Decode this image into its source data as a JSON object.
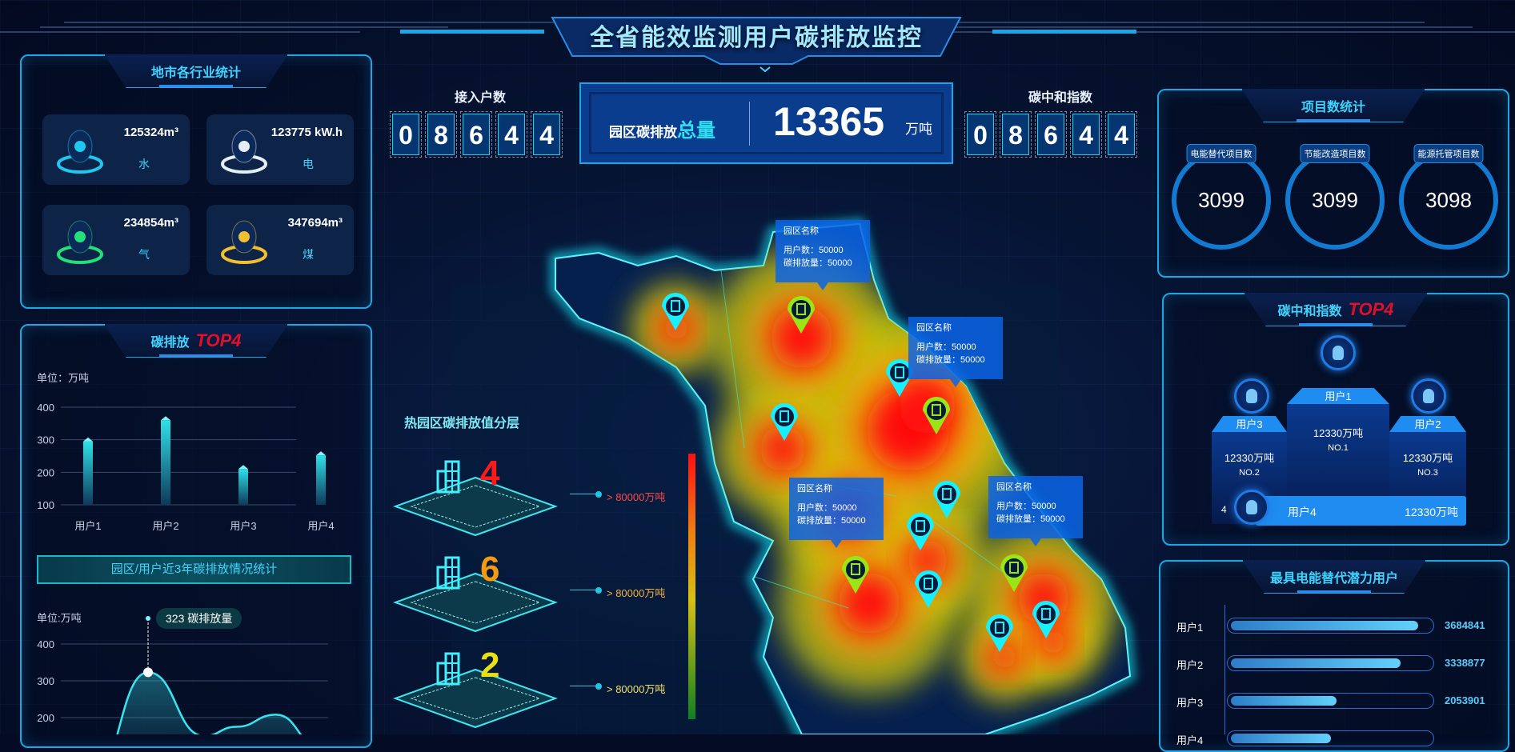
{
  "title": "全省能效监测用户碳排放监控",
  "colors": {
    "accent": "#1aa7e8",
    "title_cyan": "#3fd4ff",
    "top4_red": "#e0102a",
    "pin_cyan": "#19f0ff",
    "pin_green": "#9ae614"
  },
  "industry": {
    "title": "地市各行业统计",
    "cards": [
      {
        "value": "125324m³",
        "label": "水",
        "icon": "water-drop-icon",
        "color": "#1ec8f0"
      },
      {
        "value": "123775 kW.h",
        "label": "电",
        "icon": "lightning-icon",
        "color": "#e6eef5"
      },
      {
        "value": "234854m³",
        "label": "气",
        "icon": "gas-icon",
        "color": "#22e07a"
      },
      {
        "value": "347694m³",
        "label": "煤",
        "icon": "flame-icon",
        "color": "#f0c030"
      }
    ]
  },
  "top4": {
    "title": "碳排放",
    "badge": "TOP4",
    "unit": "单位：万吨",
    "chart_data": {
      "type": "bar",
      "categories": [
        "用户1",
        "用户2",
        "用户3",
        "用户4"
      ],
      "values": [
        295,
        360,
        210,
        252
      ],
      "yticks": [
        "100",
        "200",
        "300",
        "400"
      ],
      "ylim": [
        100,
        400
      ]
    }
  },
  "trend": {
    "button": "园区/用户近3年碳排放情况统计",
    "unit": "单位:万吨",
    "tooltip_value": "323",
    "tooltip_label": "碳排放量",
    "chart_data": {
      "type": "area",
      "values": [
        40,
        323,
        150,
        175,
        208,
        120
      ],
      "highlight_index": 1,
      "yticks": [
        "200",
        "300",
        "400"
      ],
      "ylim": [
        100,
        400
      ]
    }
  },
  "access": {
    "label": "接入户数",
    "digits": [
      "0",
      "8",
      "6",
      "4",
      "4"
    ]
  },
  "total": {
    "label": "园区碳排放",
    "label_em": "总量",
    "value": "13365",
    "unit": "万吨"
  },
  "neutral": {
    "label": "碳中和指数",
    "digits": [
      "0",
      "8",
      "6",
      "4",
      "4"
    ]
  },
  "legend": {
    "title": "热园区碳排放值分层",
    "layers": [
      {
        "count": "4",
        "color": "#ff1a1a",
        "label": "> 80000万吨",
        "label_color": "#ff4a4a"
      },
      {
        "count": "6",
        "color": "#f39a10",
        "label": "> 80000万吨",
        "label_color": "#f5b040"
      },
      {
        "count": "2",
        "color": "#e8e010",
        "label": "> 80000万吨",
        "label_color": "#f0e070"
      }
    ]
  },
  "tooltips": [
    {
      "name": "园区名称",
      "users": "用户数：50000",
      "emission": "碳排放量：50000"
    },
    {
      "name": "园区名称",
      "users": "用户数：50000",
      "emission": "碳排放量：50000"
    },
    {
      "name": "园区名称",
      "users": "用户数：50000",
      "emission": "碳排放量：50000"
    },
    {
      "name": "园区名称",
      "users": "用户数：50000",
      "emission": "碳排放量：50000"
    }
  ],
  "projects": {
    "title": "项目数统计",
    "items": [
      {
        "label": "电能替代项目数",
        "value": "3099"
      },
      {
        "label": "节能改造项目数",
        "value": "3099"
      },
      {
        "label": "能源托管项目数",
        "value": "3098"
      }
    ]
  },
  "ranking": {
    "title": "碳中和指数",
    "badge": "TOP4",
    "first": {
      "name": "用户1",
      "value": "12330万吨",
      "rank": "NO.1"
    },
    "left": {
      "name": "用户3",
      "value": "12330万吨",
      "rank": "NO.2"
    },
    "right": {
      "name": "用户2",
      "value": "12330万吨",
      "rank": "NO.3"
    },
    "fourth": {
      "rank": "4",
      "name": "用户4",
      "value": "12330万吨"
    }
  },
  "potential": {
    "title": "最具电能替代潜力用户",
    "rows": [
      {
        "name": "用户1",
        "value": "3684841",
        "fraction": 0.94
      },
      {
        "name": "用户2",
        "value": "3338877",
        "fraction": 0.85
      },
      {
        "name": "用户3",
        "value": "2053901",
        "fraction": 0.53
      },
      {
        "name": "用户4",
        "value": "",
        "fraction": 0.5
      }
    ]
  }
}
